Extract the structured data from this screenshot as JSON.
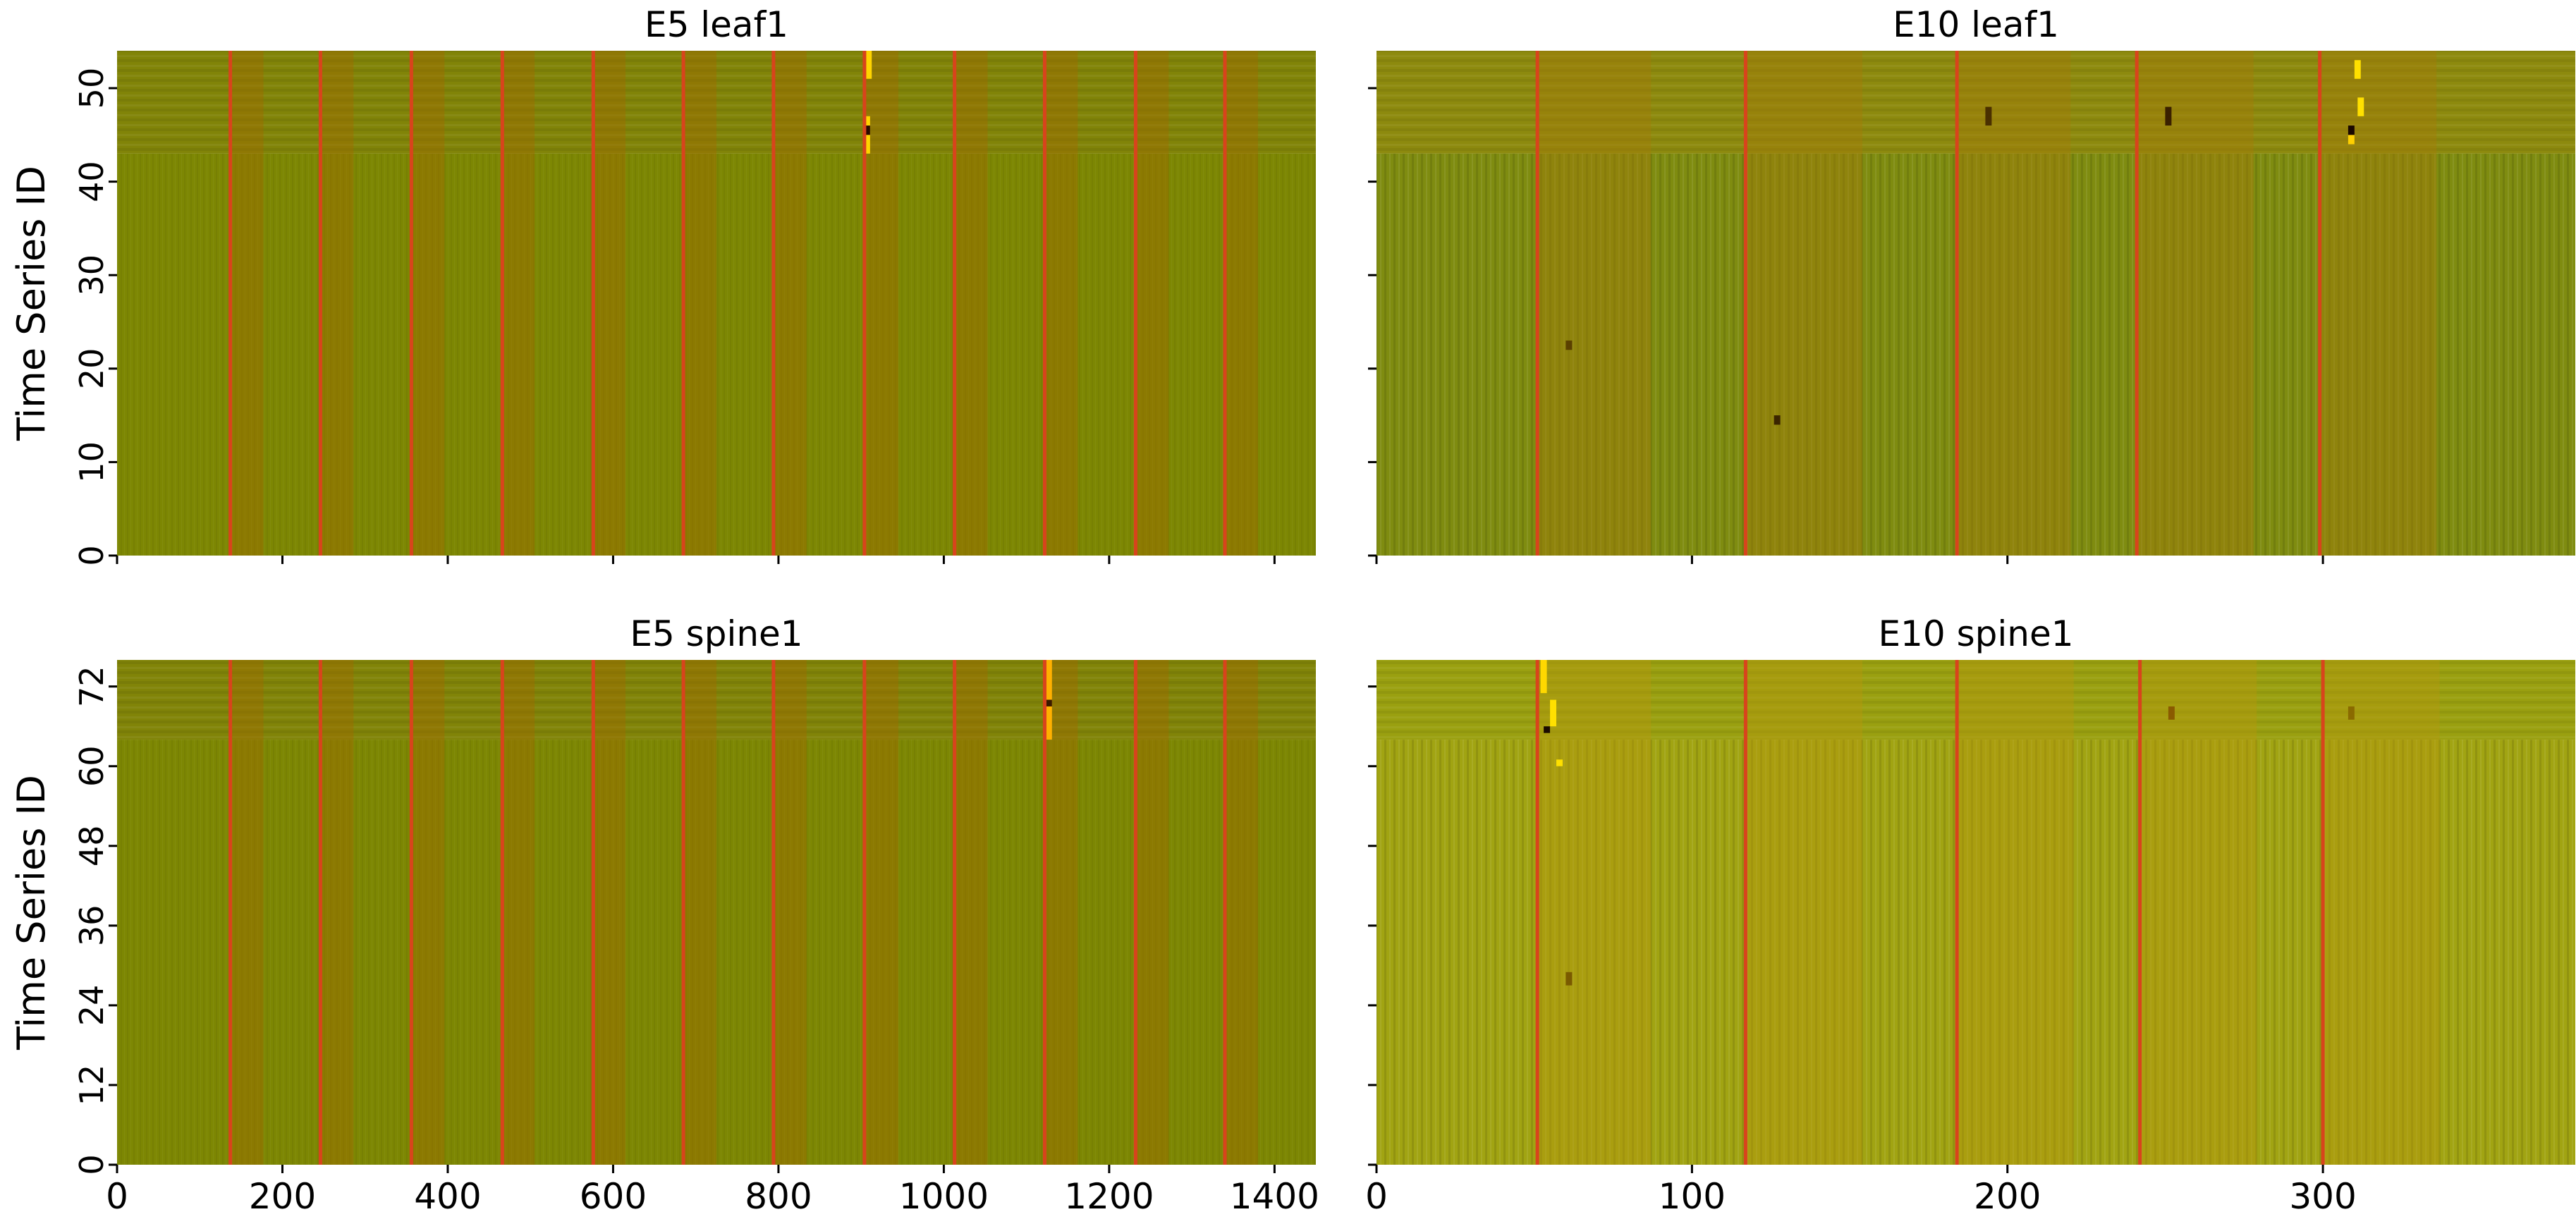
{
  "figure": {
    "ylabel": "Time Series ID"
  },
  "chart_data": [
    {
      "type": "heatmap",
      "title": "E5 leaf1",
      "ylabel": "Time Series ID",
      "xlim": [
        0,
        1450
      ],
      "ylim": [
        0,
        54
      ],
      "yticks": [
        0,
        10,
        20,
        30,
        40,
        50
      ],
      "xticks": [
        0,
        200,
        400,
        600,
        800,
        1000,
        1200,
        1400
      ],
      "show_xtick_labels": false,
      "split_row": 43,
      "colors": {
        "upper": "#818408",
        "lower": "#7d8703",
        "band": "#a06a00",
        "line": "#d8441c"
      },
      "event_lines": [
        137,
        246,
        356,
        466,
        576,
        685,
        794,
        904,
        1013,
        1122,
        1232,
        1340
      ],
      "bands": [
        [
          137,
          177
        ],
        [
          246,
          286
        ],
        [
          356,
          396
        ],
        [
          466,
          505
        ],
        [
          576,
          615
        ],
        [
          685,
          725
        ],
        [
          794,
          834
        ],
        [
          904,
          945
        ],
        [
          1013,
          1053
        ],
        [
          1122,
          1162
        ],
        [
          1232,
          1272
        ],
        [
          1340,
          1380
        ]
      ],
      "highlights": [
        {
          "x": 904,
          "y0": 43,
          "y1": 47,
          "color": "#ffd400"
        },
        {
          "x": 904,
          "y0": 45,
          "y1": 46,
          "color": "#2a0a00"
        },
        {
          "x": 906,
          "y0": 51,
          "y1": 54,
          "color": "#ffd400"
        }
      ]
    },
    {
      "type": "heatmap",
      "title": "E10 leaf1",
      "ylabel": "",
      "xlim": [
        0,
        380
      ],
      "ylim": [
        0,
        54
      ],
      "yticks": [
        0,
        10,
        20,
        30,
        40,
        50
      ],
      "xticks": [
        0,
        100,
        200,
        300
      ],
      "show_xtick_labels": false,
      "show_ytick_labels": false,
      "split_row": 43,
      "colors": {
        "upper": "#8d8a0e",
        "lower": "#7f8c10",
        "band": "#a47a08",
        "line": "#d8441c"
      },
      "event_lines": [
        51,
        117,
        184,
        241,
        299
      ],
      "bands": [
        [
          51,
          87
        ],
        [
          117,
          154
        ],
        [
          184,
          220
        ],
        [
          241,
          278
        ],
        [
          299,
          336
        ]
      ],
      "highlights": [
        {
          "x": 193,
          "y0": 46,
          "y1": 48,
          "color": "#4a3000"
        },
        {
          "x": 250,
          "y0": 46,
          "y1": 48,
          "color": "#3a2000"
        },
        {
          "x": 310,
          "y0": 51,
          "y1": 53,
          "color": "#ffe000"
        },
        {
          "x": 311,
          "y0": 47,
          "y1": 49,
          "color": "#ffe000"
        },
        {
          "x": 308,
          "y0": 44,
          "y1": 45,
          "color": "#ffd000"
        },
        {
          "x": 308,
          "y0": 45,
          "y1": 46,
          "color": "#1a0800"
        },
        {
          "x": 126,
          "y0": 14,
          "y1": 15,
          "color": "#3a2400"
        },
        {
          "x": 60,
          "y0": 22,
          "y1": 23,
          "color": "#5a4000"
        }
      ]
    },
    {
      "type": "heatmap",
      "title": "E5 spine1",
      "ylabel": "Time Series ID",
      "xlim": [
        0,
        1450
      ],
      "ylim": [
        0,
        76
      ],
      "yticks": [
        0,
        12,
        24,
        36,
        48,
        60,
        72
      ],
      "xticks": [
        0,
        200,
        400,
        600,
        800,
        1000,
        1200,
        1400
      ],
      "xtick_labels": [
        "0",
        "200",
        "400",
        "600",
        "800",
        "1000",
        "1200",
        "1400"
      ],
      "split_row": 64,
      "colors": {
        "upper": "#818408",
        "lower": "#7d8703",
        "band": "#a06a00",
        "line": "#d8441c"
      },
      "event_lines": [
        137,
        246,
        356,
        466,
        576,
        685,
        794,
        904,
        1013,
        1122,
        1232,
        1340
      ],
      "bands": [
        [
          137,
          177
        ],
        [
          246,
          286
        ],
        [
          356,
          396
        ],
        [
          466,
          505
        ],
        [
          576,
          615
        ],
        [
          685,
          725
        ],
        [
          794,
          834
        ],
        [
          904,
          945
        ],
        [
          1013,
          1053
        ],
        [
          1122,
          1162
        ],
        [
          1232,
          1272
        ],
        [
          1340,
          1380
        ]
      ],
      "highlights": [
        {
          "x": 1124,
          "y0": 64,
          "y1": 76,
          "color": "#ffb000"
        },
        {
          "x": 1124,
          "y0": 69,
          "y1": 70,
          "color": "#3a1a00"
        }
      ]
    },
    {
      "type": "heatmap",
      "title": "E10 spine1",
      "ylabel": "",
      "xlim": [
        0,
        380
      ],
      "ylim": [
        0,
        76
      ],
      "yticks": [
        0,
        12,
        24,
        36,
        48,
        60,
        72
      ],
      "xticks": [
        0,
        100,
        200,
        300
      ],
      "xtick_labels": [
        "0",
        "100",
        "200",
        "300"
      ],
      "show_ytick_labels": false,
      "split_row": 64,
      "colors": {
        "upper": "#9aa010",
        "lower": "#a1a412",
        "band": "#b6960e",
        "line": "#d8441c"
      },
      "event_lines": [
        51,
        117,
        184,
        242,
        300
      ],
      "bands": [
        [
          51,
          87
        ],
        [
          117,
          154
        ],
        [
          184,
          221
        ],
        [
          242,
          279
        ],
        [
          300,
          337
        ]
      ],
      "highlights": [
        {
          "x": 52,
          "y0": 71,
          "y1": 76,
          "color": "#ffd800"
        },
        {
          "x": 55,
          "y0": 66,
          "y1": 70,
          "color": "#ffe000"
        },
        {
          "x": 53,
          "y0": 65,
          "y1": 66,
          "color": "#1a0a00"
        },
        {
          "x": 57,
          "y0": 60,
          "y1": 61,
          "color": "#ffe000"
        },
        {
          "x": 251,
          "y0": 67,
          "y1": 69,
          "color": "#8a5a00"
        },
        {
          "x": 308,
          "y0": 67,
          "y1": 69,
          "color": "#8a6a00"
        },
        {
          "x": 60,
          "y0": 27,
          "y1": 29,
          "color": "#7a5a00"
        }
      ]
    }
  ]
}
